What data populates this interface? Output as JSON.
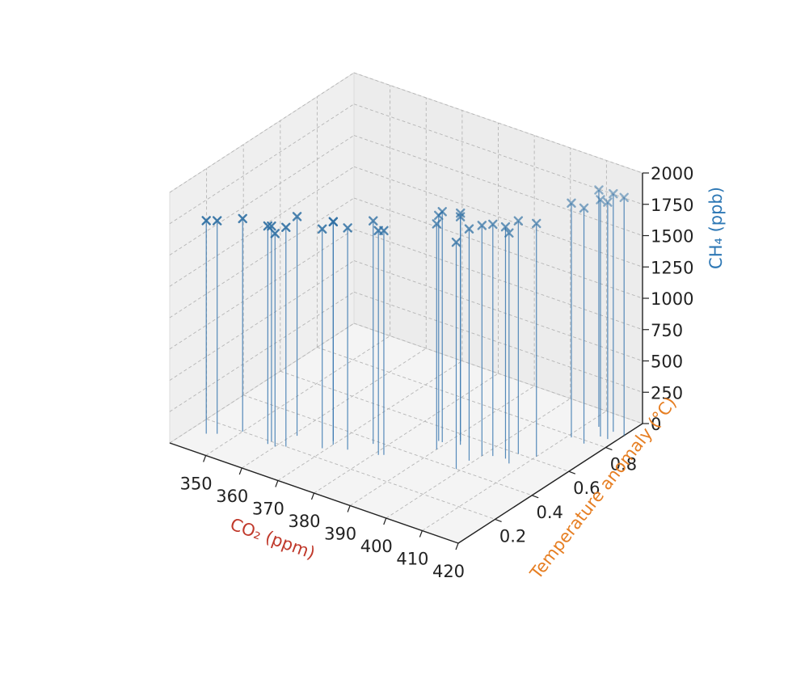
{
  "chart_data": {
    "type": "scatter",
    "projection": "3d",
    "marker": "x",
    "stems_to_floor": true,
    "grid": true,
    "legend": "none",
    "xlabel": "CO₂ (ppm)",
    "ylabel": "Temperature anomaly (°C)",
    "zlabel": "CH₄ (ppb)",
    "xlim": [
      340,
      420
    ],
    "ylim": [
      0,
      1.0
    ],
    "zlim": [
      0,
      2000
    ],
    "xticks": [
      "350",
      "360",
      "370",
      "380",
      "390",
      "400",
      "410",
      "420"
    ],
    "yticks": [
      "0.2",
      "0.4",
      "0.6",
      "0.8"
    ],
    "zticks": [
      "0",
      "250",
      "500",
      "750",
      "1000",
      "1250",
      "1500",
      "1750",
      "2000"
    ],
    "colors": {
      "points": "#2e6fa3",
      "stems": "#3a78b0",
      "xlabel": "#c0392b",
      "ylabel": "#e67e22",
      "zlabel": "#2e78b5",
      "pane_back": "#ececec",
      "pane_left": "#efefef",
      "pane_floor": "#f4f4f4"
    },
    "points": [
      {
        "x": 344,
        "y": 0.12,
        "z": 1700
      },
      {
        "x": 346,
        "y": 0.14,
        "z": 1700
      },
      {
        "x": 350,
        "y": 0.2,
        "z": 1700
      },
      {
        "x": 358,
        "y": 0.18,
        "z": 1740
      },
      {
        "x": 358,
        "y": 0.2,
        "z": 1720
      },
      {
        "x": 360,
        "y": 0.18,
        "z": 1700
      },
      {
        "x": 361,
        "y": 0.28,
        "z": 1750
      },
      {
        "x": 362,
        "y": 0.2,
        "z": 1750
      },
      {
        "x": 369,
        "y": 0.26,
        "z": 1750
      },
      {
        "x": 369,
        "y": 0.32,
        "z": 1750
      },
      {
        "x": 370,
        "y": 0.3,
        "z": 1780
      },
      {
        "x": 374,
        "y": 0.3,
        "z": 1770
      },
      {
        "x": 377,
        "y": 0.38,
        "z": 1780
      },
      {
        "x": 381,
        "y": 0.33,
        "z": 1790
      },
      {
        "x": 382,
        "y": 0.34,
        "z": 1790
      },
      {
        "x": 388,
        "y": 0.52,
        "z": 1800
      },
      {
        "x": 389,
        "y": 0.52,
        "z": 1840
      },
      {
        "x": 390,
        "y": 0.47,
        "z": 1800
      },
      {
        "x": 392,
        "y": 0.56,
        "z": 1820
      },
      {
        "x": 393,
        "y": 0.54,
        "z": 1820
      },
      {
        "x": 399,
        "y": 0.4,
        "z": 1810
      },
      {
        "x": 399,
        "y": 0.47,
        "z": 1850
      },
      {
        "x": 400,
        "y": 0.52,
        "z": 1840
      },
      {
        "x": 402,
        "y": 0.54,
        "z": 1850
      },
      {
        "x": 405,
        "y": 0.55,
        "z": 1850
      },
      {
        "x": 406,
        "y": 0.6,
        "z": 1860
      },
      {
        "x": 407,
        "y": 0.53,
        "z": 1840
      },
      {
        "x": 410,
        "y": 0.62,
        "z": 1860
      },
      {
        "x": 411,
        "y": 0.79,
        "z": 1870
      },
      {
        "x": 413,
        "y": 0.9,
        "z": 1890
      },
      {
        "x": 415,
        "y": 0.78,
        "z": 1880
      },
      {
        "x": 416,
        "y": 0.85,
        "z": 1890
      },
      {
        "x": 417,
        "y": 0.9,
        "z": 1900
      },
      {
        "x": 418,
        "y": 0.85,
        "z": 1890
      },
      {
        "x": 420,
        "y": 0.9,
        "z": 1900
      }
    ]
  }
}
